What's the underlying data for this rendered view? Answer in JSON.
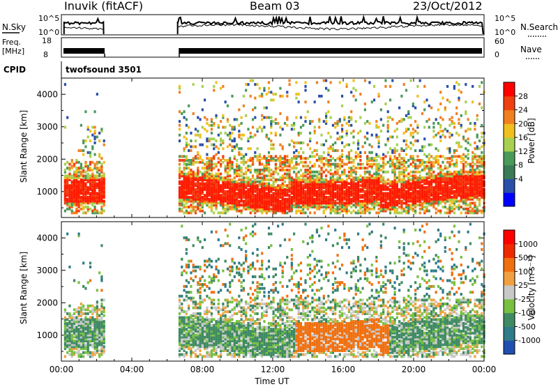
{
  "header": {
    "station": "Inuvik (fitACF)",
    "beam": "Beam 03",
    "date": "23/Oct/2012"
  },
  "panels": {
    "nsky": {
      "label_left": "N.Sky",
      "label_right": "N.Search",
      "left_ticks": [
        "10^5",
        "10^0"
      ],
      "right_ticks": [
        "10^5",
        "10^0"
      ]
    },
    "freq": {
      "label_left_1": "Freq.",
      "label_left_2": "[MHz]",
      "label_right": "Nave",
      "left_ticks": [
        "18",
        "8"
      ],
      "right_ticks": [
        "60",
        "0"
      ]
    },
    "cpid": {
      "label": "CPID",
      "program": "twofsound 3501"
    }
  },
  "chart_data": [
    {
      "type": "heatmap",
      "name": "power",
      "ylabel": "Slant Range [km]",
      "xlabel": "",
      "ylim": [
        200,
        4500
      ],
      "yticks": [
        "4000",
        "3000",
        "2000",
        "1000"
      ],
      "xticks": [
        "00:00",
        "04:00",
        "08:00",
        "12:00",
        "16:00",
        "20:00",
        "00:00"
      ],
      "colorbar": {
        "label": "Power [dB]",
        "ticks": [
          "28",
          "24",
          "20",
          "16",
          "12",
          "8",
          "4"
        ],
        "colors": [
          "#0000ff",
          "#2a4fa8",
          "#3a7a55",
          "#4a9a5a",
          "#a8d050",
          "#f0c020",
          "#f08020",
          "#f04010",
          "#ff0000"
        ]
      },
      "data_gaps_hours": [
        [
          2.4,
          6.6
        ]
      ]
    },
    {
      "type": "heatmap",
      "name": "velocity",
      "ylabel": "Slant Range [km]",
      "xlabel": "Time UT",
      "ylim": [
        200,
        4500
      ],
      "yticks": [
        "4000",
        "3000",
        "2000",
        "1000"
      ],
      "xticks": [
        "00:00",
        "04:00",
        "08:00",
        "12:00",
        "16:00",
        "20:00",
        "00:00"
      ],
      "colorbar": {
        "label": "Velocity [m s⁻¹]",
        "ticks": [
          "1000",
          "500",
          "100",
          "25",
          "-25",
          "-100",
          "-500",
          "-1000"
        ],
        "colors": [
          "#1f4fb0",
          "#2e7b8a",
          "#3f8a63",
          "#78c040",
          "#c8c8c8",
          "#f0a040",
          "#f07010",
          "#f02a00",
          "#ff0000"
        ]
      },
      "data_gaps_hours": [
        [
          2.4,
          6.6
        ]
      ]
    }
  ]
}
